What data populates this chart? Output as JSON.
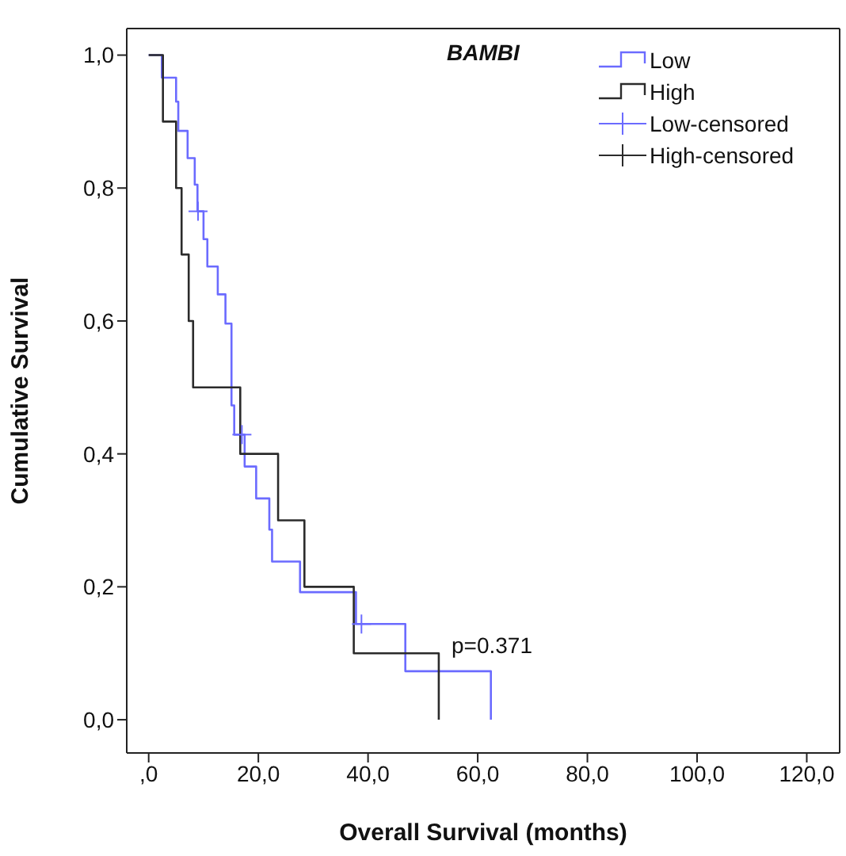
{
  "chart_data": {
    "type": "step",
    "title": "BAMBI",
    "xlabel": "Overall Survival (months)",
    "ylabel": "Cumulative Survival",
    "xlim": [
      -4,
      126
    ],
    "xticks": [
      {
        "value": 0,
        "label": ",0"
      },
      {
        "value": 20,
        "label": "20,0"
      },
      {
        "value": 40,
        "label": "40,0"
      },
      {
        "value": 60,
        "label": "60,0"
      },
      {
        "value": 80,
        "label": "80,0"
      },
      {
        "value": 100,
        "label": "100,0"
      },
      {
        "value": 120,
        "label": "120,0"
      }
    ],
    "ylim": [
      -0.05,
      1.04
    ],
    "yticks": [
      {
        "value": 0,
        "label": "0,0"
      },
      {
        "value": 0.2,
        "label": "0,2"
      },
      {
        "value": 0.4,
        "label": "0,4"
      },
      {
        "value": 0.6,
        "label": "0,6"
      },
      {
        "value": 0.8,
        "label": "0,8"
      },
      {
        "value": 1,
        "label": "1,0"
      }
    ],
    "series": [
      {
        "name": "Low",
        "color": "#6b6bff",
        "x": [
          0,
          2.4,
          5.0,
          5.4,
          7.1,
          8.4,
          8.9,
          10.0,
          10.7,
          12.6,
          14.0,
          15.1,
          15.6,
          17.5,
          19.6,
          22.0,
          22.5,
          27.6,
          37.8,
          46.8,
          62.4
        ],
        "values": [
          1.0,
          0.966,
          0.93,
          0.886,
          0.845,
          0.805,
          0.765,
          0.723,
          0.682,
          0.64,
          0.596,
          0.473,
          0.429,
          0.381,
          0.333,
          0.286,
          0.238,
          0.192,
          0.144,
          0.073,
          0
        ]
      },
      {
        "name": "High",
        "color": "#2b2b2b",
        "x": [
          0,
          2.6,
          5.0,
          6.0,
          7.3,
          8.1,
          16.7,
          23.6,
          28.4,
          37.4,
          52.9
        ],
        "values": [
          1.0,
          0.9,
          0.8,
          0.7,
          0.6,
          0.5,
          0.4,
          0.3,
          0.2,
          0.1,
          0
        ]
      },
      {
        "name": "Low-censored",
        "type": "scatter",
        "marker": "cross",
        "color": "#6b6bff",
        "x": [
          9.0,
          17.0,
          38.8
        ],
        "values": [
          0.765,
          0.429,
          0.144
        ]
      },
      {
        "name": "High-censored",
        "type": "scatter",
        "marker": "cross",
        "color": "#2b2b2b"
      }
    ],
    "annotations": [
      "p=0.371"
    ],
    "legend": "top right"
  }
}
